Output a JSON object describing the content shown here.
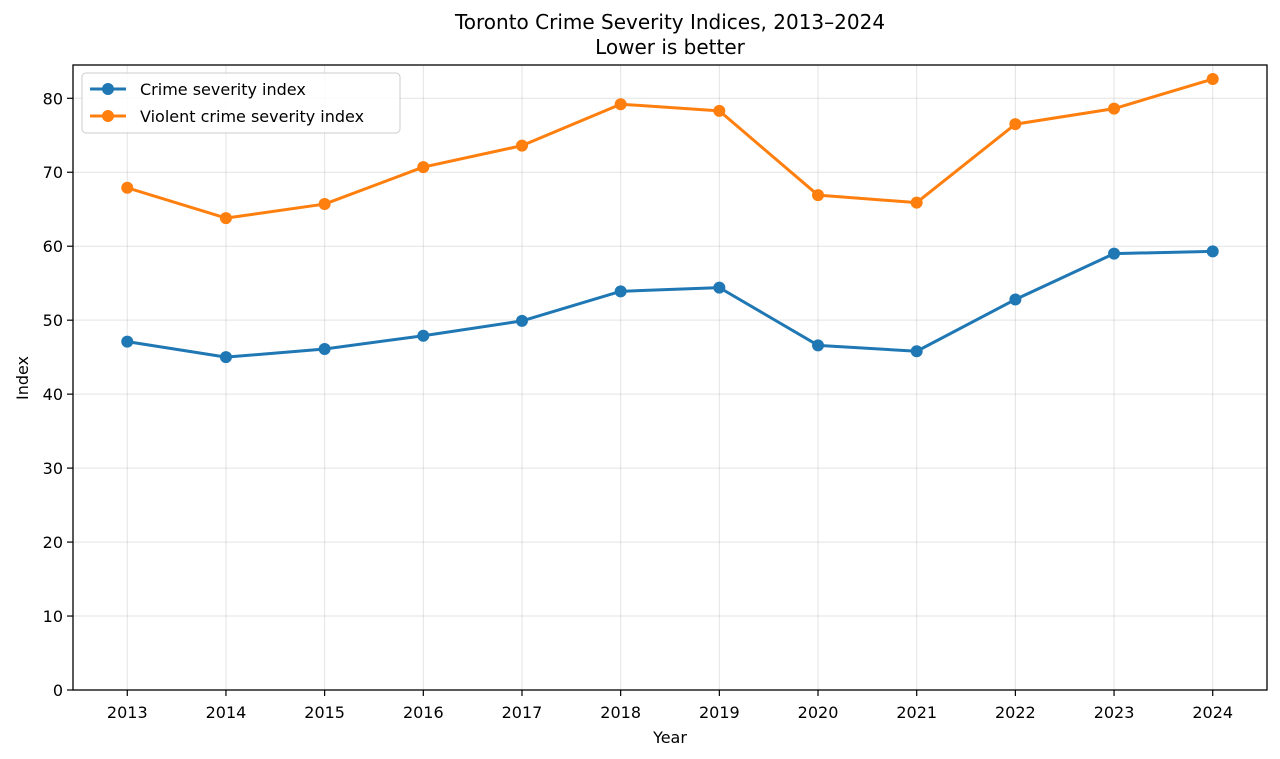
{
  "chart_data": {
    "type": "line",
    "title": "Toronto Crime Severity Indices, 2013–2024",
    "subtitle": "Lower is better",
    "xlabel": "Year",
    "ylabel": "Index",
    "x": [
      2013,
      2014,
      2015,
      2016,
      2017,
      2018,
      2019,
      2020,
      2021,
      2022,
      2023,
      2024
    ],
    "xlim": [
      2012.45,
      2024.55
    ],
    "ylim": [
      0,
      84.5
    ],
    "yticks": [
      0,
      10,
      20,
      30,
      40,
      50,
      60,
      70,
      80
    ],
    "grid": true,
    "legend_position": "top-left",
    "series": [
      {
        "name": "Crime severity index",
        "color": "#1f77b4",
        "values": [
          47.1,
          45.0,
          46.1,
          47.9,
          49.9,
          53.9,
          54.4,
          46.6,
          45.8,
          52.8,
          59.0,
          59.3
        ]
      },
      {
        "name": "Violent crime severity index",
        "color": "#ff7f0e",
        "values": [
          67.9,
          63.8,
          65.7,
          70.7,
          73.6,
          79.2,
          78.3,
          66.9,
          65.9,
          76.5,
          78.6,
          82.6
        ]
      }
    ]
  }
}
